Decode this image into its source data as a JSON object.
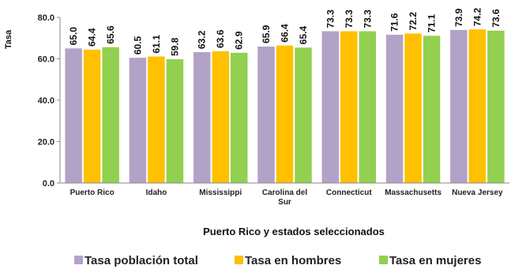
{
  "chart_data": {
    "type": "bar",
    "title": "",
    "xlabel": "Puerto Rico y estados seleccionados",
    "ylabel": "Tasa",
    "ylim": [
      0,
      80
    ],
    "yticks": [
      "0.0",
      "20.0",
      "40.0",
      "60.0",
      "80.0"
    ],
    "grid": false,
    "legend": "bottom",
    "categories": [
      [
        "Puerto Rico"
      ],
      [
        "Idaho"
      ],
      [
        "Mississippi"
      ],
      [
        "Carolina del",
        "Sur"
      ],
      [
        "Connecticut"
      ],
      [
        "Massachusetts"
      ],
      [
        "Nueva Jersey"
      ]
    ],
    "series": [
      {
        "name": "Tasa población total",
        "color": "#b3a2c7",
        "values": [
          65.0,
          60.5,
          63.2,
          65.9,
          73.3,
          71.6,
          73.9
        ],
        "labels": [
          "65.0",
          "60.5",
          "63.2",
          "65.9",
          "73.3",
          "71.6",
          "73.9"
        ]
      },
      {
        "name": "Tasa en hombres",
        "color": "#ffc000",
        "values": [
          64.4,
          61.1,
          63.6,
          66.4,
          73.3,
          72.2,
          74.2
        ],
        "labels": [
          "64.4",
          "61.1",
          "63.6",
          "66.4",
          "73.3",
          "72.2",
          "74.2"
        ]
      },
      {
        "name": "Tasa en mujeres",
        "color": "#92d050",
        "values": [
          65.6,
          59.8,
          62.9,
          65.4,
          73.3,
          71.1,
          73.6
        ],
        "labels": [
          "65.6",
          "59.8",
          "62.9",
          "65.4",
          "73.3",
          "71.1",
          "73.6"
        ]
      }
    ]
  }
}
